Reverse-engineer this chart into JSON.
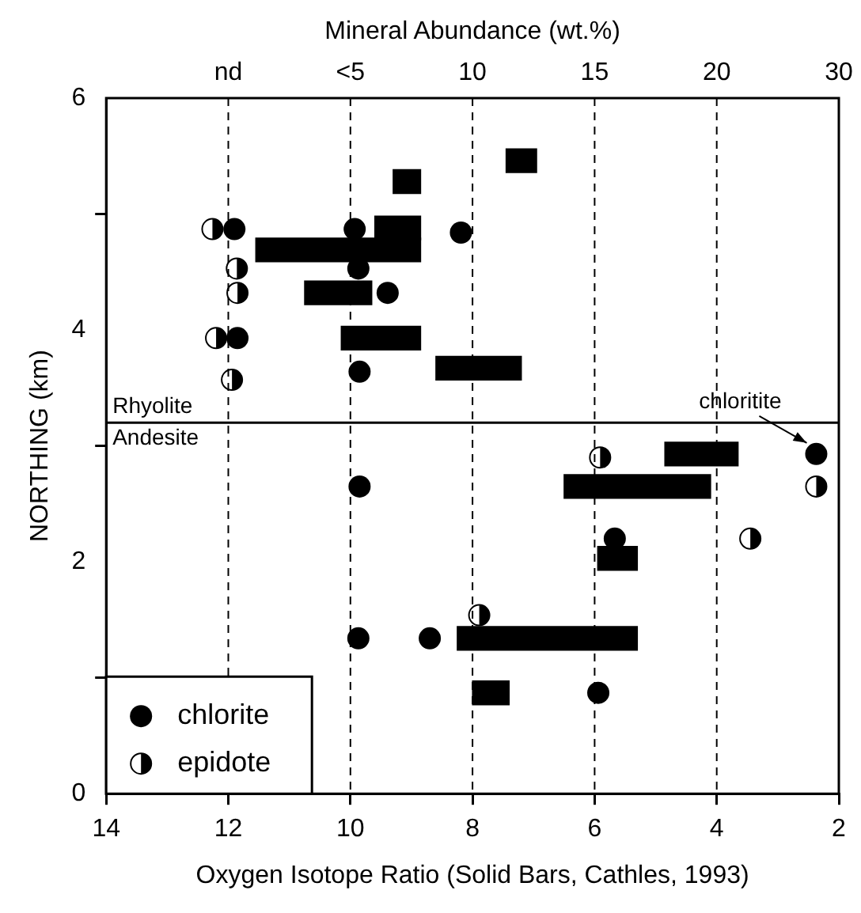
{
  "chart_data": {
    "type": "bar",
    "orientation": "horizontal",
    "xlabel": "Oxygen Isotope Ratio (Solid Bars, Cathles, 1993)",
    "ylabel": "NORTHING (km)",
    "xlim": [
      14,
      2
    ],
    "xticks": [
      14,
      12,
      10,
      8,
      6,
      4,
      2
    ],
    "ylim": [
      0,
      6
    ],
    "yticks": [
      0,
      2,
      4,
      6
    ],
    "legend": "bottom left",
    "marker": "circle",
    "series": [
      {
        "color": "#000000",
        "x": [
          5.46,
          5.28,
          4.88,
          4.69,
          4.32,
          3.93,
          3.67,
          2.93,
          2.65,
          2.03,
          1.34,
          0.87
        ],
        "base": [
          6.95,
          8.85,
          8.85,
          8.85,
          9.65,
          8.85,
          7.2,
          3.65,
          4.1,
          5.3,
          5.3,
          7.4
        ],
        "values": [
          0.5,
          0.45,
          0.75,
          2.7,
          1.1,
          1.3,
          1.4,
          1.2,
          2.4,
          0.65,
          2.95,
          0.6
        ]
      },
      {
        "type": "scatter",
        "name": "chlorite",
        "color": "#000000",
        "x": [
          4.87,
          4.87,
          4.84,
          4.53,
          4.32,
          3.93,
          3.64,
          2.93,
          2.65,
          2.2,
          1.34,
          1.34,
          0.87
        ],
        "values": [
          11.9,
          9.93,
          8.19,
          9.87,
          9.39,
          11.85,
          9.85,
          2.37,
          9.85,
          5.67,
          9.87,
          8.7,
          5.94
        ]
      },
      {
        "type": "scatter",
        "name": "epidote",
        "color": "#000000",
        "x": [
          4.87,
          4.53,
          4.32,
          3.93,
          3.57,
          2.9,
          2.65,
          2.2,
          1.54
        ],
        "values": [
          12.26,
          11.86,
          11.85,
          12.2,
          11.94,
          5.91,
          2.37,
          3.45,
          7.89
        ]
      }
    ],
    "ref_lines": [
      {
        "axis": "y",
        "value": 3.2,
        "color": "#000000"
      },
      {
        "axis": "x",
        "value": 12,
        "line_style": "dashed",
        "color": "#000000"
      },
      {
        "axis": "x",
        "value": 10,
        "line_style": "dashed",
        "color": "#000000"
      },
      {
        "axis": "x",
        "value": 8,
        "line_style": "dashed",
        "color": "#000000"
      },
      {
        "axis": "x",
        "value": 6,
        "line_style": "dashed",
        "color": "#000000"
      },
      {
        "axis": "x",
        "value": 4,
        "line_style": "dashed",
        "color": "#000000"
      }
    ],
    "annotations": [
      "Mineral Abundance (wt.%)",
      {
        "text": "nd",
        "x": 12,
        "y": 6
      },
      {
        "text": "<5",
        "x": 10,
        "y": 6
      },
      {
        "text": "10",
        "x": 8,
        "y": 6
      },
      {
        "text": "15",
        "x": 6,
        "y": 6
      },
      {
        "text": "20",
        "x": 4,
        "y": 6
      },
      "30",
      {
        "text": "Rhyolite",
        "y": 3.2
      },
      {
        "text": "Andesite",
        "y": 3.2
      },
      {
        "text": "chloritite",
        "x": 2.37,
        "y": 2.93
      }
    ]
  }
}
